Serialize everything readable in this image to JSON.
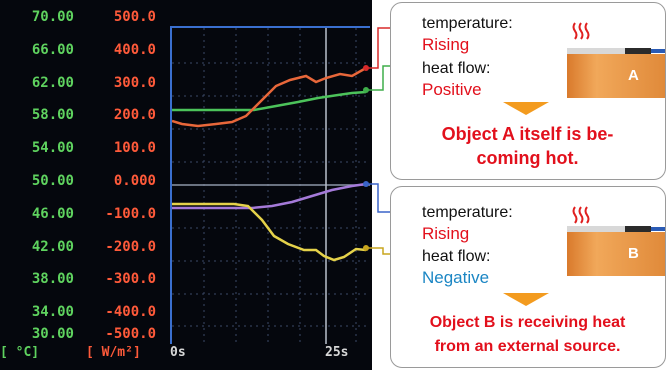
{
  "screen": {
    "temperature_ticks": [
      "70.00",
      "66.00",
      "62.00",
      "58.00",
      "54.00",
      "50.00",
      "46.00",
      "42.00",
      "38.00",
      "34.00",
      "30.00"
    ],
    "heat_flow_ticks": [
      "500.0",
      "400.0",
      "300.0",
      "200.0",
      "100.0",
      "0.000",
      "-100.0",
      "-200.0",
      "-300.0",
      "-400.0",
      "-500.0"
    ],
    "temp_unit": "[  °C]",
    "flow_unit": "[  W/m²]",
    "time_ticks": [
      "0s",
      "25s"
    ],
    "colors": {
      "temp_axis": "#5fd35f",
      "flow_axis": "#ff5a3a",
      "a_heat_flow": "#e8673a",
      "a_temperature": "#4cc35a",
      "b_temperature": "#a57ad9",
      "b_heat_flow": "#e5d24a"
    }
  },
  "panel_a": {
    "temperature_label": "temperature:",
    "temperature_value": "Rising",
    "heat_flow_label": "heat flow:",
    "heat_flow_value": "Positive",
    "object_label": "A",
    "conclusion_line1": "Object A itself is be-",
    "conclusion_line2": "coming hot."
  },
  "panel_b": {
    "temperature_label": "temperature:",
    "temperature_value": "Rising",
    "heat_flow_label": "heat flow:",
    "heat_flow_value": "Negative",
    "object_label": "B",
    "conclusion_line1": "Object B is receiving heat",
    "conclusion_line2": "from an external source."
  }
}
